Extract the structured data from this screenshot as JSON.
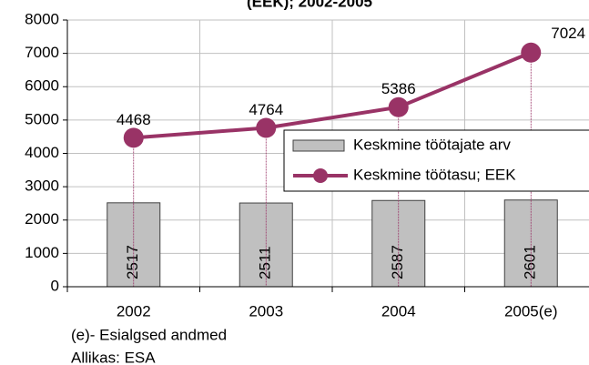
{
  "chart_data": {
    "type": "bar",
    "title": "(EEK); 2002-2005",
    "categories": [
      "2002",
      "2003",
      "2004",
      "2005(e)"
    ],
    "series": [
      {
        "name": "Keskmine töötajate arv",
        "type": "bar",
        "color": "#c0c0c0",
        "values": [
          2517,
          2511,
          2587,
          2601
        ]
      },
      {
        "name": "Keskmine töötasu; EEK",
        "type": "line",
        "color": "#993366",
        "values": [
          4468,
          4764,
          5386,
          7024
        ]
      }
    ],
    "ylim": [
      0,
      8000
    ],
    "yticks": [
      0,
      1000,
      2000,
      3000,
      4000,
      5000,
      6000,
      7000,
      8000
    ],
    "grid": true,
    "legend": "right",
    "notes": [
      "(e)- Esialgsed andmed",
      "Allikas: ESA"
    ]
  }
}
